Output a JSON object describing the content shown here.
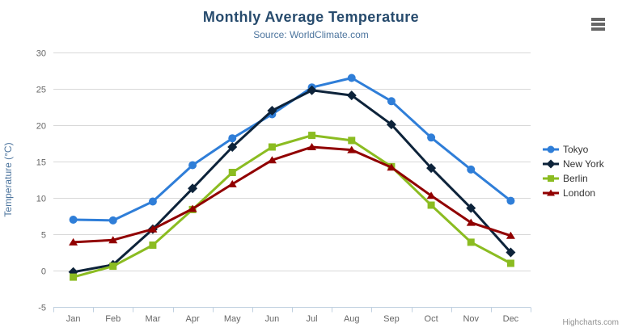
{
  "header": {
    "title": "Monthly Average Temperature",
    "subtitle": "Source: WorldClimate.com"
  },
  "icons": {
    "context_menu": "hamburger-icon"
  },
  "credits": {
    "label": "Highcharts.com"
  },
  "chart_data": {
    "type": "line",
    "title": "Monthly Average Temperature",
    "subtitle": "Source: WorldClimate.com",
    "categories": [
      "Jan",
      "Feb",
      "Mar",
      "Apr",
      "May",
      "Jun",
      "Jul",
      "Aug",
      "Sep",
      "Oct",
      "Nov",
      "Dec"
    ],
    "xlabel": "",
    "ylabel": "Temperature (°C)",
    "ylim": [
      -5,
      30
    ],
    "ytick_interval": 5,
    "grid": true,
    "legend_position": "right",
    "axis_colors": {
      "grid_line": "#d8d8d8",
      "x_axis_line": "#c0d0e0",
      "tick_label": "#666666",
      "axis_title": "#4d759e"
    },
    "series": [
      {
        "name": "Tokyo",
        "color": "#2f7ed8",
        "marker": "circle",
        "values": [
          7.0,
          6.9,
          9.5,
          14.5,
          18.2,
          21.5,
          25.2,
          26.5,
          23.3,
          18.3,
          13.9,
          9.6
        ]
      },
      {
        "name": "New York",
        "color": "#0d233a",
        "marker": "diamond",
        "values": [
          -0.2,
          0.8,
          5.7,
          11.3,
          17.0,
          22.0,
          24.8,
          24.1,
          20.1,
          14.1,
          8.6,
          2.5
        ]
      },
      {
        "name": "Berlin",
        "color": "#8bbc21",
        "marker": "square",
        "values": [
          -0.9,
          0.6,
          3.5,
          8.4,
          13.5,
          17.0,
          18.6,
          17.9,
          14.3,
          9.0,
          3.9,
          1.0
        ]
      },
      {
        "name": "London",
        "color": "#910000",
        "marker": "triangle",
        "values": [
          3.9,
          4.2,
          5.7,
          8.5,
          11.9,
          15.2,
          17.0,
          16.6,
          14.2,
          10.3,
          6.6,
          4.8
        ]
      }
    ]
  }
}
